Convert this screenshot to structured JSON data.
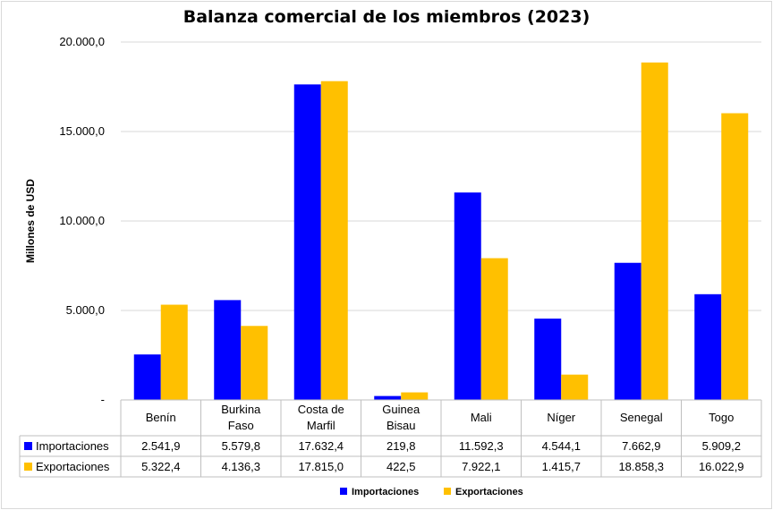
{
  "chart_data": {
    "type": "bar",
    "title": "Balanza comercial de los miembros (2023)",
    "ylabel": "Millones de USD",
    "xlabel": "",
    "ylim": [
      0,
      20000
    ],
    "yticks": [
      {
        "value": 0,
        "label": "-"
      },
      {
        "value": 5000,
        "label": "5.000,0"
      },
      {
        "value": 10000,
        "label": "10.000,0"
      },
      {
        "value": 15000,
        "label": "15.000,0"
      },
      {
        "value": 20000,
        "label": "20.000,0"
      }
    ],
    "grid": true,
    "legend_position": "bottom",
    "categories": [
      [
        "Benín"
      ],
      [
        "Burkina",
        "Faso"
      ],
      [
        "Costa de",
        "Marfil"
      ],
      [
        "Guinea",
        "Bisau"
      ],
      [
        "Mali"
      ],
      [
        "Níger"
      ],
      [
        "Senegal"
      ],
      [
        "Togo"
      ]
    ],
    "series": [
      {
        "name": "Importaciones",
        "color": "#0000FF",
        "values": [
          2541.9,
          5579.8,
          17632.4,
          219.8,
          11592.3,
          4544.1,
          7662.9,
          5909.2
        ],
        "labels": [
          "2.541,9",
          "5.579,8",
          "17.632,4",
          "219,8",
          "11.592,3",
          "4.544,1",
          "7.662,9",
          "5.909,2"
        ]
      },
      {
        "name": "Exportaciones",
        "color": "#FFC000",
        "values": [
          5322.4,
          4136.3,
          17815.0,
          422.5,
          7922.1,
          1415.7,
          18858.3,
          16022.9
        ],
        "labels": [
          "5.322,4",
          "4.136,3",
          "17.815,0",
          "422,5",
          "7.922,1",
          "1.415,7",
          "18.858,3",
          "16.022,9"
        ]
      }
    ]
  }
}
